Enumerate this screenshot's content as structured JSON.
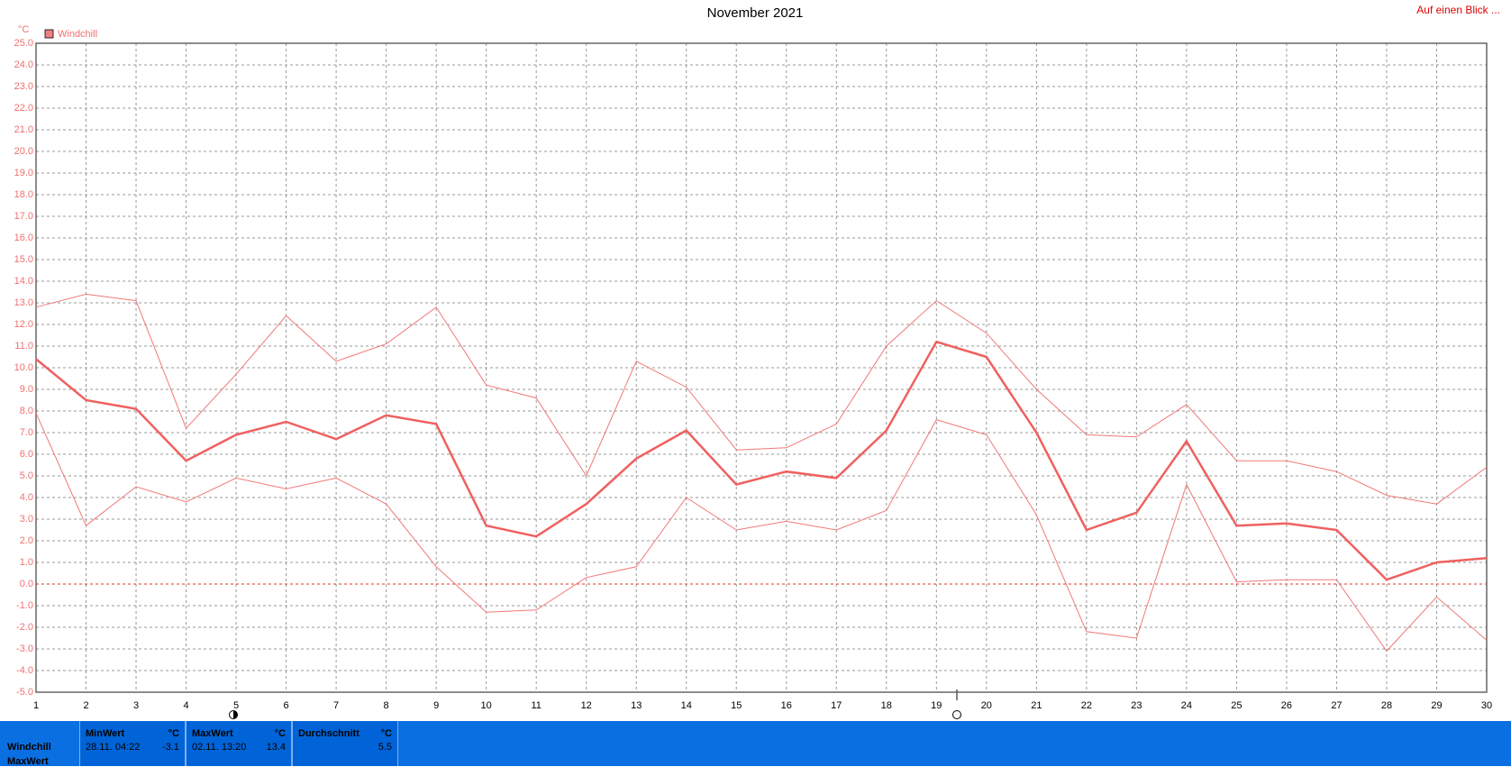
{
  "chart_data": {
    "type": "line",
    "title": "November 2021",
    "link": "Auf einen Blick ...",
    "y_unit": "°C",
    "x": [
      1,
      2,
      3,
      4,
      5,
      6,
      7,
      8,
      9,
      10,
      11,
      12,
      13,
      14,
      15,
      16,
      17,
      18,
      19,
      20,
      21,
      22,
      23,
      24,
      25,
      26,
      27,
      28,
      29,
      30
    ],
    "xlim": [
      1,
      30
    ],
    "series": [
      {
        "name": "Windchill",
        "color": "#f06060",
        "values": [
          10.4,
          8.5,
          8.1,
          5.7,
          6.9,
          7.5,
          6.7,
          7.8,
          7.4,
          2.7,
          2.2,
          3.7,
          5.8,
          7.1,
          4.6,
          5.2,
          4.9,
          7.1,
          11.2,
          10.5,
          7.0,
          2.5,
          3.3,
          6.6,
          2.7,
          2.8,
          2.5,
          0.2,
          1.0,
          1.2
        ]
      },
      {
        "color": "#f07878",
        "values": [
          12.8,
          13.4,
          13.1,
          7.2,
          9.7,
          12.4,
          10.3,
          11.1,
          12.8,
          9.2,
          8.6,
          5.0,
          10.3,
          9.1,
          6.2,
          6.3,
          7.4,
          11.0,
          13.1,
          11.6,
          9.0,
          6.9,
          6.8,
          8.3,
          5.7,
          5.7,
          5.2,
          4.1,
          3.7,
          5.4
        ]
      },
      {
        "color": "#f07878",
        "values": [
          7.9,
          2.7,
          4.5,
          3.8,
          4.9,
          4.4,
          4.9,
          3.7,
          0.8,
          -1.3,
          -1.2,
          0.3,
          0.8,
          4.0,
          2.5,
          2.9,
          2.5,
          3.4,
          7.6,
          6.9,
          3.2,
          -2.2,
          -2.5,
          4.6,
          0.1,
          0.2,
          0.2,
          -3.1,
          -0.6,
          -2.6
        ]
      }
    ],
    "ylim": [
      -5,
      25
    ],
    "yticks": [
      {
        "value": -5,
        "label": "-5.0"
      },
      {
        "value": -4,
        "label": "-4.0"
      },
      {
        "value": -3,
        "label": "-3.0"
      },
      {
        "value": -2,
        "label": "-2.0"
      },
      {
        "value": -1,
        "label": "-1.0"
      },
      {
        "value": 0,
        "label": "0.0"
      },
      {
        "value": 1,
        "label": "1.0"
      },
      {
        "value": 2,
        "label": "2.0"
      },
      {
        "value": 3,
        "label": "3.0"
      },
      {
        "value": 4,
        "label": "4.0"
      },
      {
        "value": 5,
        "label": "5.0"
      },
      {
        "value": 6,
        "label": "6.0"
      },
      {
        "value": 7,
        "label": "7.0"
      },
      {
        "value": 8,
        "label": "8.0"
      },
      {
        "value": 9,
        "label": "9.0"
      },
      {
        "value": 10,
        "label": "10.0"
      },
      {
        "value": 11,
        "label": "11.0"
      },
      {
        "value": 12,
        "label": "12.0"
      },
      {
        "value": 13,
        "label": "13.0"
      },
      {
        "value": 14,
        "label": "14.0"
      },
      {
        "value": 15,
        "label": "15.0"
      },
      {
        "value": 16,
        "label": "16.0"
      },
      {
        "value": 17,
        "label": "17.0"
      },
      {
        "value": 18,
        "label": "18.0"
      },
      {
        "value": 19,
        "label": "19.0"
      },
      {
        "value": 20,
        "label": "20.0"
      },
      {
        "value": 21,
        "label": "21.0"
      },
      {
        "value": 22,
        "label": "22.0"
      },
      {
        "value": 23,
        "label": "23.0"
      },
      {
        "value": 24,
        "label": "24.0"
      },
      {
        "value": 25,
        "label": "25.0"
      }
    ],
    "grid": true
  },
  "summary": {
    "rows": [
      "Windchill",
      "MaxWert"
    ],
    "boxes": [
      {
        "header": "MinWert",
        "unit": "°C",
        "time": "28.11.  04:22",
        "value": "-3.1"
      },
      {
        "header": "MaxWert",
        "unit": "°C",
        "time": "02.11.  13:20",
        "value": "13.4"
      },
      {
        "header": "Durchschnitt",
        "unit": "°C",
        "value": "5.5"
      }
    ]
  }
}
